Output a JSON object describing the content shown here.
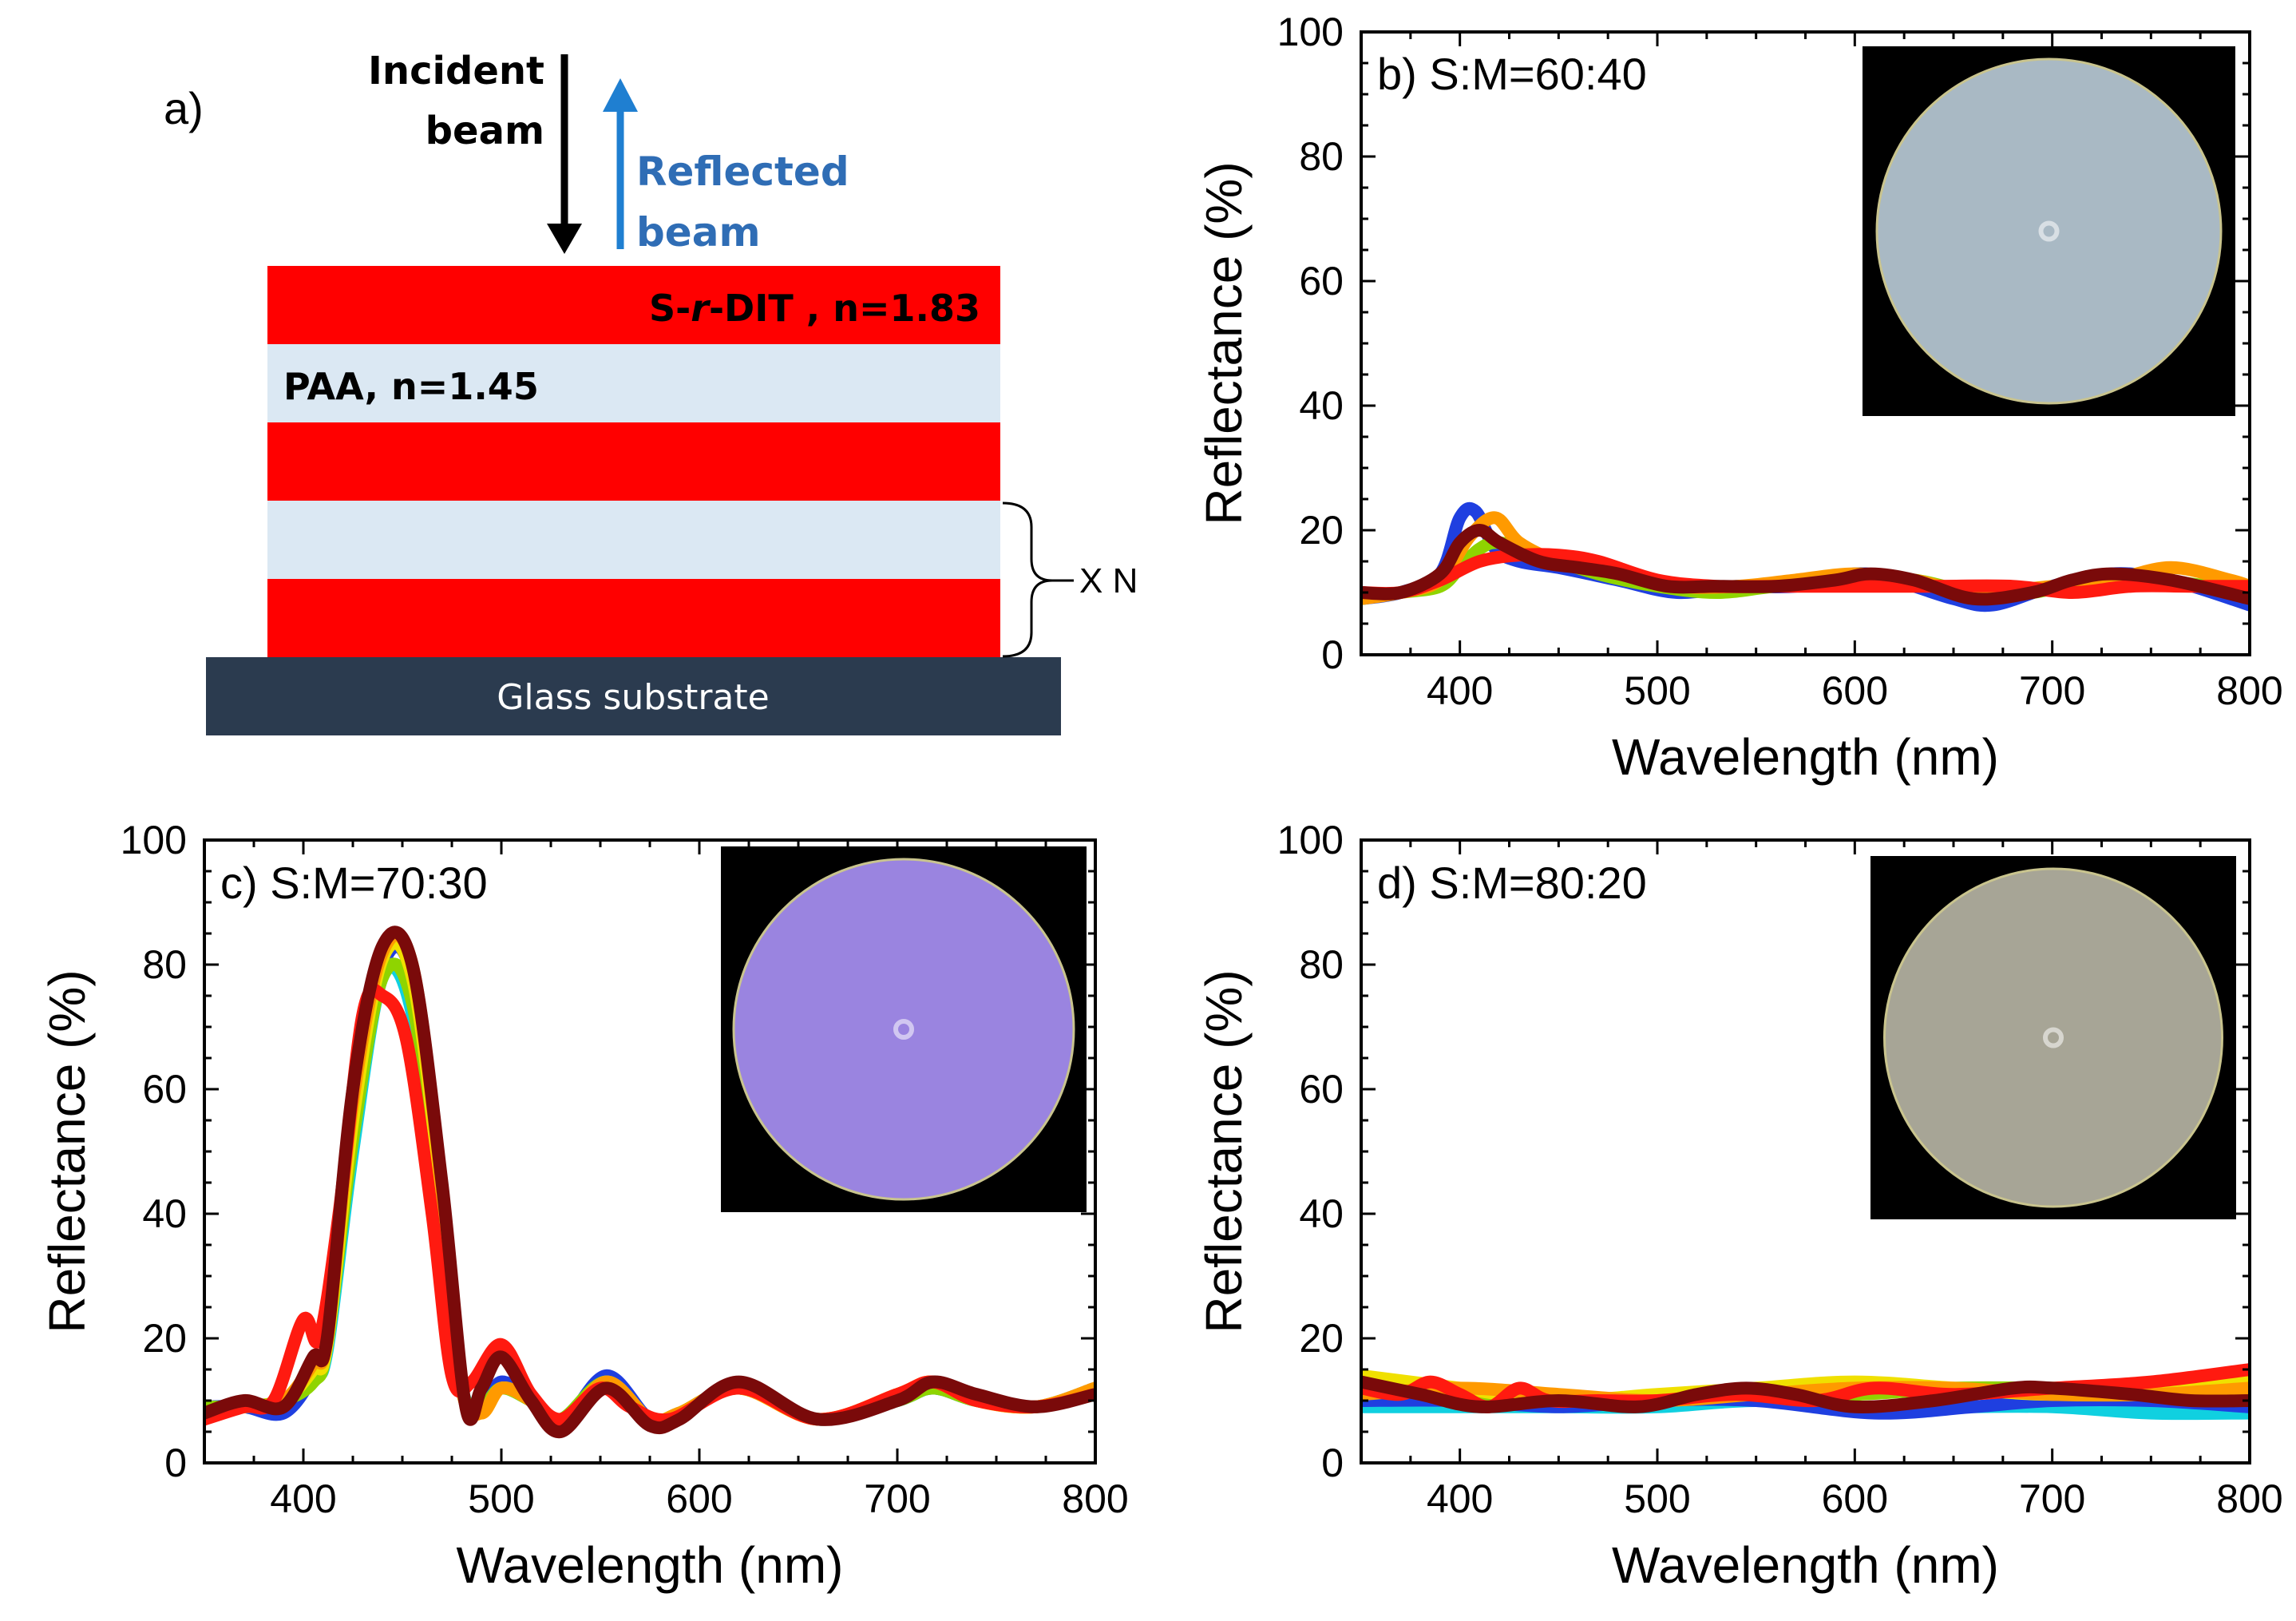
{
  "diagram": {
    "label": "a)",
    "incident_line1": "Incident",
    "incident_line2": "beam",
    "reflected_line1": "Reflected",
    "reflected_line2": "beam",
    "layer_high_prefix": "S-",
    "layer_high_italic": "r",
    "layer_high_suffix": "-DIT , n=1.83",
    "layer_low": "PAA, n=1.45",
    "repeat": "X N",
    "substrate": "Glass substrate",
    "colors": {
      "high": "#ff0000",
      "low": "#dbe8f3",
      "substrate": "#2b3b4f",
      "incident_arrow": "#000000",
      "reflected_arrow": "#1f7fd1",
      "reflected_text": "#2f6db5"
    }
  },
  "chart_data": [
    {
      "id": "b",
      "type": "line",
      "title": "b) S:M=60:40",
      "xlabel": "Wavelength (nm)",
      "ylabel": "Reflectance (%)",
      "xlim": [
        350,
        800
      ],
      "ylim": [
        0,
        100
      ],
      "xticks": [
        400,
        500,
        600,
        700,
        800
      ],
      "yticks": [
        0,
        20,
        40,
        60,
        80,
        100
      ],
      "inset": {
        "kind": "sample-photo",
        "disc_color": "#a9b9c4",
        "background": "#000000"
      },
      "series": [
        {
          "name": "blue",
          "color": "#1f3fe0",
          "x": [
            350,
            370,
            390,
            400,
            408,
            418,
            430,
            450,
            480,
            510,
            540,
            570,
            600,
            620,
            650,
            670,
            700,
            730,
            760,
            800
          ],
          "y": [
            9,
            10,
            13,
            22,
            23,
            17,
            15,
            14,
            12,
            10,
            11,
            11,
            13,
            12,
            9,
            8,
            11,
            13,
            12,
            8
          ]
        },
        {
          "name": "green",
          "color": "#8fd400",
          "x": [
            350,
            370,
            390,
            400,
            410,
            420,
            440,
            470,
            500,
            530,
            560,
            600,
            630,
            660,
            690,
            720,
            750,
            780,
            800
          ],
          "y": [
            9,
            10,
            11,
            14,
            17,
            18,
            16,
            13,
            11,
            10,
            11,
            12,
            12,
            10,
            10,
            12,
            12,
            11,
            10
          ]
        },
        {
          "name": "orange",
          "color": "#ff9a00",
          "x": [
            350,
            370,
            390,
            405,
            418,
            430,
            450,
            480,
            510,
            540,
            570,
            600,
            630,
            660,
            700,
            730,
            760,
            790,
            800
          ],
          "y": [
            9,
            10,
            12,
            19,
            22,
            18,
            15,
            13,
            11,
            11,
            12,
            13,
            12,
            10,
            11,
            12,
            14,
            12,
            11
          ]
        },
        {
          "name": "red",
          "color": "#ff1a10",
          "x": [
            350,
            370,
            390,
            410,
            430,
            450,
            470,
            500,
            530,
            560,
            600,
            640,
            680,
            710,
            740,
            770,
            800
          ],
          "y": [
            10,
            10,
            12,
            15,
            16,
            16,
            15,
            12,
            11,
            11,
            11,
            11,
            11,
            10,
            11,
            11,
            11
          ]
        },
        {
          "name": "dark-red",
          "color": "#7a0a0a",
          "x": [
            350,
            370,
            390,
            400,
            410,
            420,
            440,
            460,
            480,
            505,
            530,
            560,
            590,
            608,
            630,
            660,
            690,
            710,
            730,
            760,
            800
          ],
          "y": [
            10,
            10,
            13,
            18,
            20,
            18,
            15,
            14,
            13,
            11,
            11,
            11,
            12,
            13,
            12,
            9,
            10,
            12,
            13,
            12,
            9
          ]
        }
      ]
    },
    {
      "id": "c",
      "type": "line",
      "title": "c) S:M=70:30",
      "xlabel": "Wavelength (nm)",
      "ylabel": "Reflectance (%)",
      "xlim": [
        350,
        800
      ],
      "ylim": [
        0,
        100
      ],
      "xticks": [
        400,
        500,
        600,
        700,
        800
      ],
      "yticks": [
        0,
        20,
        40,
        60,
        80,
        100
      ],
      "inset": {
        "kind": "sample-photo",
        "disc_color": "#9a84e0",
        "background": "#000000"
      },
      "series": [
        {
          "name": "blue",
          "color": "#1f3fe0",
          "x": [
            350,
            370,
            390,
            405,
            412,
            425,
            440,
            455,
            470,
            480,
            490,
            500,
            515,
            530,
            553,
            575,
            590,
            620,
            660,
            700,
            718,
            740,
            770,
            800
          ],
          "y": [
            9,
            9,
            8,
            14,
            20,
            55,
            80,
            78,
            40,
            12,
            9,
            13,
            10,
            6,
            14,
            7,
            8,
            12,
            7,
            10,
            12,
            10,
            9,
            12
          ]
        },
        {
          "name": "cyan",
          "color": "#10d0e0",
          "x": [
            350,
            370,
            390,
            405,
            412,
            425,
            440,
            455,
            470,
            480,
            490,
            500,
            515,
            530,
            553,
            575,
            590,
            620,
            660,
            700,
            718,
            740,
            770,
            800
          ],
          "y": [
            9,
            9,
            10,
            14,
            18,
            50,
            78,
            72,
            35,
            12,
            9,
            12,
            10,
            7,
            13,
            7,
            8,
            12,
            7,
            10,
            12,
            10,
            9,
            11
          ]
        },
        {
          "name": "green",
          "color": "#8fd400",
          "x": [
            350,
            370,
            390,
            405,
            412,
            425,
            440,
            455,
            470,
            480,
            490,
            500,
            515,
            530,
            553,
            575,
            590,
            620,
            660,
            700,
            718,
            740,
            770,
            800
          ],
          "y": [
            9,
            9,
            10,
            13,
            19,
            52,
            78,
            74,
            38,
            12,
            9,
            12,
            10,
            7,
            13,
            7,
            8,
            12,
            7,
            10,
            12,
            10,
            9,
            11
          ]
        },
        {
          "name": "yellow",
          "color": "#f0e000",
          "x": [
            350,
            370,
            390,
            405,
            412,
            425,
            440,
            455,
            470,
            480,
            490,
            500,
            515,
            530,
            553,
            575,
            590,
            620,
            660,
            700,
            718,
            740,
            770,
            800
          ],
          "y": [
            8,
            9,
            10,
            15,
            19,
            55,
            81,
            78,
            42,
            12,
            8,
            12,
            10,
            6,
            13,
            7,
            8,
            12,
            7,
            11,
            13,
            10,
            9,
            12
          ]
        },
        {
          "name": "orange",
          "color": "#ff9a00",
          "x": [
            350,
            370,
            390,
            405,
            412,
            425,
            440,
            455,
            470,
            480,
            490,
            500,
            515,
            530,
            553,
            575,
            590,
            620,
            660,
            700,
            718,
            740,
            770,
            800
          ],
          "y": [
            8,
            9,
            10,
            16,
            20,
            58,
            82,
            80,
            44,
            12,
            8,
            12,
            10,
            6,
            13,
            7,
            8,
            12,
            7,
            11,
            13,
            10,
            9,
            12
          ]
        },
        {
          "name": "red",
          "color": "#ff1a10",
          "x": [
            350,
            370,
            385,
            400,
            408,
            418,
            430,
            440,
            452,
            465,
            475,
            485,
            500,
            515,
            530,
            550,
            565,
            585,
            620,
            660,
            700,
            718,
            740,
            770,
            800
          ],
          "y": [
            7,
            9,
            10,
            23,
            20,
            40,
            72,
            75,
            68,
            40,
            14,
            13,
            19,
            11,
            7,
            12,
            9,
            7,
            12,
            7,
            11,
            13,
            10,
            9,
            11
          ]
        },
        {
          "name": "dark-red",
          "color": "#7a0a0a",
          "x": [
            350,
            370,
            390,
            405,
            412,
            425,
            440,
            455,
            470,
            482,
            490,
            500,
            515,
            530,
            553,
            575,
            590,
            620,
            660,
            700,
            718,
            740,
            770,
            800
          ],
          "y": [
            8,
            10,
            9,
            17,
            20,
            60,
            83,
            80,
            45,
            9,
            12,
            17,
            10,
            5,
            12,
            6,
            7,
            13,
            7,
            10,
            13,
            11,
            9,
            11
          ]
        }
      ]
    },
    {
      "id": "d",
      "type": "line",
      "title": "d) S:M=80:20",
      "xlabel": "Wavelength (nm)",
      "ylabel": "Reflectance (%)",
      "xlim": [
        350,
        800
      ],
      "ylim": [
        0,
        100
      ],
      "xticks": [
        400,
        500,
        600,
        700,
        800
      ],
      "yticks": [
        0,
        20,
        40,
        60,
        80,
        100
      ],
      "inset": {
        "kind": "sample-photo",
        "disc_color": "#a7a596",
        "background": "#000000"
      },
      "series": [
        {
          "name": "cyan",
          "color": "#10d0e0",
          "x": [
            350,
            400,
            450,
            500,
            550,
            600,
            650,
            700,
            750,
            800
          ],
          "y": [
            9,
            9,
            9,
            9,
            10,
            9,
            9,
            9,
            8,
            8
          ]
        },
        {
          "name": "blue",
          "color": "#1f3fe0",
          "x": [
            350,
            400,
            450,
            500,
            550,
            610,
            660,
            700,
            750,
            800
          ],
          "y": [
            10,
            10,
            9,
            10,
            10,
            8,
            9,
            10,
            10,
            9
          ]
        },
        {
          "name": "green",
          "color": "#8fd400",
          "x": [
            350,
            400,
            450,
            500,
            550,
            600,
            650,
            700,
            750,
            800
          ],
          "y": [
            12,
            11,
            10,
            10,
            11,
            11,
            12,
            12,
            12,
            12
          ]
        },
        {
          "name": "yellow",
          "color": "#f0e000",
          "x": [
            350,
            400,
            450,
            500,
            550,
            600,
            650,
            700,
            750,
            800
          ],
          "y": [
            14,
            12,
            10,
            11,
            12,
            13,
            12,
            11,
            12,
            13
          ]
        },
        {
          "name": "orange",
          "color": "#ff9a00",
          "x": [
            350,
            400,
            450,
            500,
            550,
            600,
            650,
            700,
            750,
            800
          ],
          "y": [
            11,
            12,
            11,
            10,
            11,
            12,
            12,
            11,
            11,
            12
          ]
        },
        {
          "name": "red",
          "color": "#ff1a10",
          "x": [
            350,
            370,
            385,
            400,
            415,
            430,
            445,
            470,
            500,
            540,
            580,
            610,
            650,
            700,
            750,
            800
          ],
          "y": [
            12,
            11,
            13,
            11,
            9,
            12,
            10,
            10,
            10,
            11,
            10,
            12,
            11,
            12,
            13,
            15
          ]
        },
        {
          "name": "dark-red",
          "color": "#7a0a0a",
          "x": [
            350,
            380,
            410,
            450,
            490,
            520,
            545,
            570,
            600,
            640,
            680,
            700,
            740,
            770,
            800
          ],
          "y": [
            13,
            11,
            9,
            10,
            9,
            11,
            12,
            11,
            9,
            10,
            12,
            12,
            11,
            10,
            10
          ]
        }
      ]
    }
  ]
}
